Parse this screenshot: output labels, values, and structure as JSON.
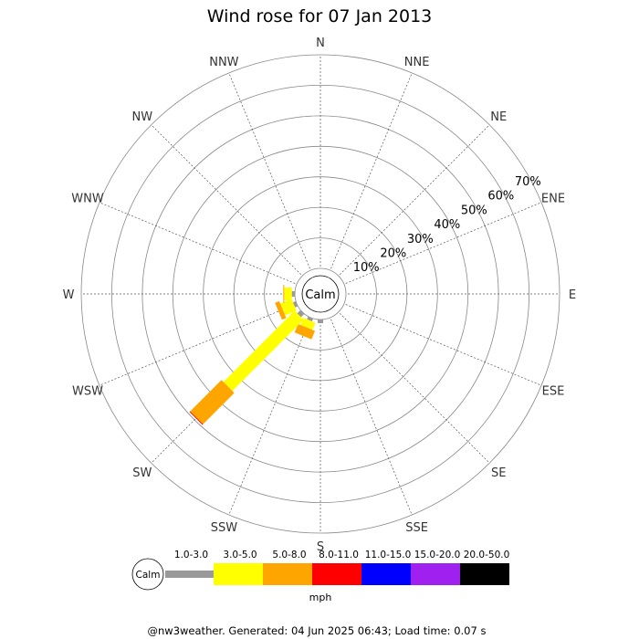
{
  "chart_data": {
    "type": "windrose",
    "title": "Wind rose for 07 Jan 2013",
    "directions": [
      "N",
      "NNE",
      "NE",
      "ENE",
      "E",
      "ESE",
      "SE",
      "SSE",
      "S",
      "SSW",
      "SW",
      "WSW",
      "W",
      "WNW",
      "NW",
      "NNW"
    ],
    "radial_ticks": [
      "10%",
      "20%",
      "30%",
      "40%",
      "50%",
      "60%",
      "70%"
    ],
    "radial_max": 70,
    "calm_label": "Calm",
    "unit": "mph",
    "speed_bins": [
      {
        "label": "1.0-3.0",
        "color": "#999999"
      },
      {
        "label": "3.0-5.0",
        "color": "#ffff00"
      },
      {
        "label": "5.0-8.0",
        "color": "#ffa500"
      },
      {
        "label": "8.0-11.0",
        "color": "#ff0000"
      },
      {
        "label": "11.0-15.0",
        "color": "#0000ff"
      },
      {
        "label": "15.0-20.0",
        "color": "#a020f0"
      },
      {
        "label": "20.0-50.0",
        "color": "#000000"
      }
    ],
    "series": [
      {
        "direction": "S",
        "values": [
          1.2,
          0.0,
          0.0,
          0,
          0,
          0,
          0
        ]
      },
      {
        "direction": "SSW",
        "values": [
          1.0,
          2.5,
          3.0,
          0,
          0,
          0,
          0
        ]
      },
      {
        "direction": "SW",
        "values": [
          1.5,
          33.0,
          14.5,
          0.3,
          0,
          0,
          0
        ]
      },
      {
        "direction": "WSW",
        "values": [
          1.0,
          4.0,
          1.5,
          0,
          0,
          0,
          0
        ]
      },
      {
        "direction": "W",
        "values": [
          1.0,
          2.5,
          0.3,
          0,
          0,
          0,
          0
        ]
      }
    ]
  },
  "footer": "@nw3weather. Generated: 04 Jun 2025 06:43; Load time: 0.07 s"
}
